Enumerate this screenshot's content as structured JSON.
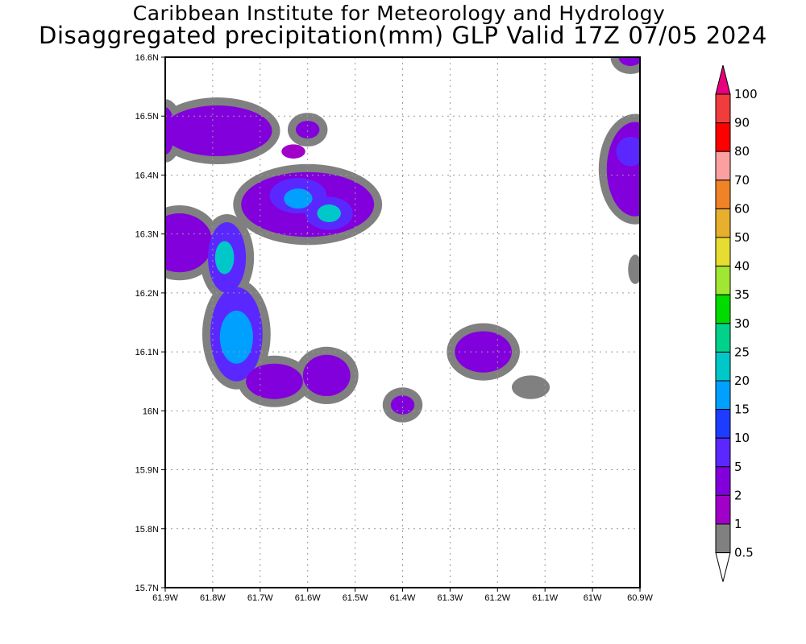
{
  "header": {
    "title": "Caribbean Institute for Meteorology and Hydrology",
    "subtitle": "Disaggregated precipitation(mm) GLP Valid 17Z 07/05 2024"
  },
  "chart_data": {
    "type": "heatmap",
    "xlim": [
      -61.9,
      -60.9
    ],
    "ylim": [
      15.7,
      16.6
    ],
    "x_ticks": [
      {
        "value": -61.9,
        "label": "61.9W"
      },
      {
        "value": -61.8,
        "label": "61.8W"
      },
      {
        "value": -61.7,
        "label": "61.7W"
      },
      {
        "value": -61.6,
        "label": "61.6W"
      },
      {
        "value": -61.5,
        "label": "61.5W"
      },
      {
        "value": -61.4,
        "label": "61.4W"
      },
      {
        "value": -61.3,
        "label": "61.3W"
      },
      {
        "value": -61.2,
        "label": "61.2W"
      },
      {
        "value": -61.1,
        "label": "61.1W"
      },
      {
        "value": -61.0,
        "label": "61W"
      },
      {
        "value": -60.9,
        "label": "60.9W"
      }
    ],
    "y_ticks": [
      {
        "value": 15.7,
        "label": "15.7N"
      },
      {
        "value": 15.8,
        "label": "15.8N"
      },
      {
        "value": 15.9,
        "label": "15.9N"
      },
      {
        "value": 16.0,
        "label": "16N"
      },
      {
        "value": 16.1,
        "label": "16.1N"
      },
      {
        "value": 16.2,
        "label": "16.2N"
      },
      {
        "value": 16.3,
        "label": "16.3N"
      },
      {
        "value": 16.4,
        "label": "16.4N"
      },
      {
        "value": 16.5,
        "label": "16.5N"
      },
      {
        "value": 16.6,
        "label": "16.6N"
      }
    ],
    "grid": true,
    "colorbar": {
      "placement": "right",
      "levels": [
        "0.5",
        "1",
        "2",
        "5",
        "10",
        "15",
        "20",
        "25",
        "30",
        "35",
        "40",
        "50",
        "60",
        "70",
        "80",
        "90",
        "100"
      ],
      "colors": [
        "#808080",
        "#a000c8",
        "#8200dc",
        "#5a28ff",
        "#1e3cff",
        "#00a0ff",
        "#00c8c8",
        "#00d28c",
        "#00dc00",
        "#a0e632",
        "#e6dc32",
        "#e6af2d",
        "#f08228",
        "#faa0a0",
        "#ff0000",
        "#f03c3c",
        "#e6007d"
      ],
      "under_color": "#ffffff"
    },
    "blobs": [
      {
        "lon": -61.79,
        "lat": 16.475,
        "rx": 0.115,
        "ry": 0.043,
        "value": 2
      },
      {
        "lon": -61.9,
        "lat": 16.475,
        "rx": 0.02,
        "ry": 0.04,
        "value": 2
      },
      {
        "lon": -61.6,
        "lat": 16.477,
        "rx": 0.025,
        "ry": 0.015,
        "value": 2
      },
      {
        "lon": -61.63,
        "lat": 16.44,
        "rx": 0.025,
        "ry": 0.012,
        "value": 1
      },
      {
        "lon": -61.6,
        "lat": 16.35,
        "rx": 0.14,
        "ry": 0.055,
        "value": 2
      },
      {
        "lon": -61.62,
        "lat": 16.365,
        "rx": 0.06,
        "ry": 0.03,
        "value": 5
      },
      {
        "lon": -61.62,
        "lat": 16.36,
        "rx": 0.03,
        "ry": 0.017,
        "value": 15
      },
      {
        "lon": -61.555,
        "lat": 16.335,
        "rx": 0.05,
        "ry": 0.028,
        "value": 5
      },
      {
        "lon": -61.555,
        "lat": 16.335,
        "rx": 0.025,
        "ry": 0.015,
        "value": 20
      },
      {
        "lon": -61.87,
        "lat": 16.285,
        "rx": 0.07,
        "ry": 0.05,
        "value": 2
      },
      {
        "lon": -61.77,
        "lat": 16.26,
        "rx": 0.04,
        "ry": 0.06,
        "value": 5
      },
      {
        "lon": -61.775,
        "lat": 16.26,
        "rx": 0.02,
        "ry": 0.028,
        "value": 20
      },
      {
        "lon": -61.75,
        "lat": 16.13,
        "rx": 0.055,
        "ry": 0.08,
        "value": 5
      },
      {
        "lon": -61.75,
        "lat": 16.125,
        "rx": 0.035,
        "ry": 0.045,
        "value": 15
      },
      {
        "lon": -61.67,
        "lat": 16.05,
        "rx": 0.06,
        "ry": 0.03,
        "value": 2
      },
      {
        "lon": -61.56,
        "lat": 16.06,
        "rx": 0.05,
        "ry": 0.035,
        "value": 2
      },
      {
        "lon": -61.4,
        "lat": 16.01,
        "rx": 0.025,
        "ry": 0.016,
        "value": 2
      },
      {
        "lon": -61.23,
        "lat": 16.1,
        "rx": 0.06,
        "ry": 0.035,
        "value": 2
      },
      {
        "lon": -61.13,
        "lat": 16.04,
        "rx": 0.04,
        "ry": 0.02,
        "value": 0.5
      },
      {
        "lon": -60.91,
        "lat": 16.41,
        "rx": 0.06,
        "ry": 0.08,
        "value": 2
      },
      {
        "lon": -60.92,
        "lat": 16.44,
        "rx": 0.03,
        "ry": 0.025,
        "value": 5
      },
      {
        "lon": -60.91,
        "lat": 16.24,
        "rx": 0.015,
        "ry": 0.025,
        "value": 0.5
      },
      {
        "lon": -60.92,
        "lat": 16.6,
        "rx": 0.025,
        "ry": 0.015,
        "value": 2
      }
    ]
  }
}
